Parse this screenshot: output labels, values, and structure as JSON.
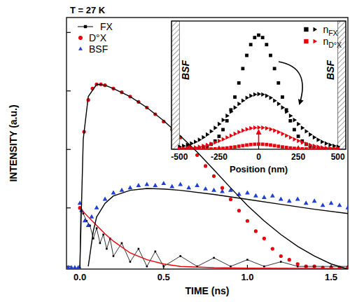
{
  "chart_data": [
    {
      "type": "line",
      "annotations": [
        "T = 27 K"
      ],
      "x_label": "TIME (ns)",
      "y_label": "INTENSITY (a.u.)",
      "xlim": [
        -0.08,
        1.6
      ],
      "ylim": [
        0.9,
        18000
      ],
      "xticks": [
        {
          "value": 0,
          "label": "0.0"
        },
        {
          "value": 0.5,
          "label": "0.5"
        },
        {
          "value": 1,
          "label": "1.0"
        },
        {
          "value": 1.5,
          "label": "1.5"
        }
      ],
      "yticks": [
        1,
        10,
        100,
        1000,
        10000
      ],
      "log": "y",
      "tick_labels": "x",
      "legend": "upper left",
      "series": [
        {
          "name": "FX",
          "type": "line",
          "color": "#000000",
          "marker": "square",
          "line_style": "solid",
          "x": [
            0,
            0.005,
            0.02,
            0.04,
            0.06,
            0.08,
            0.1,
            0.12,
            0.14,
            0.16,
            0.18,
            0.2,
            0.25,
            0.3,
            0.35,
            0.4,
            0.45,
            0.5,
            0.6,
            0.7,
            0.8,
            0.9,
            1.0,
            1.1,
            1.2,
            1.3,
            1.4,
            1.5,
            1.6
          ],
          "values": [
            0.95,
            10,
            8,
            6,
            5,
            3,
            4.5,
            2.5,
            3.5,
            2,
            3,
            1.5,
            2.5,
            1.2,
            2,
            1,
            1.8,
            1,
            1.5,
            1,
            1.4,
            1,
            1.3,
            1,
            1.2,
            1,
            1,
            1,
            1
          ]
        },
        {
          "name": "D°X",
          "type": "scatter",
          "color": "#e8000b",
          "marker": "circle",
          "x": [
            0,
            0.025,
            0.05,
            0.075,
            0.1,
            0.125,
            0.15,
            0.2,
            0.25,
            0.3,
            0.35,
            0.4,
            0.45,
            0.5,
            0.55,
            0.6,
            0.65,
            0.7,
            0.75,
            0.8,
            0.85,
            0.9,
            0.95,
            1.0,
            1.05,
            1.1,
            1.15,
            1.2,
            1.25,
            1.3,
            1.35,
            1.4,
            1.45,
            1.5,
            1.55,
            1.6
          ],
          "values": [
            10,
            200,
            700,
            1100,
            1300,
            1300,
            1250,
            1100,
            950,
            800,
            650,
            520,
            400,
            300,
            220,
            160,
            115,
            80,
            52,
            35,
            22,
            14,
            9,
            6,
            4,
            3,
            2,
            1.5,
            1.3,
            1.1,
            1.0,
            1.0,
            0.95,
            0.95,
            0.95,
            0.95
          ]
        },
        {
          "name": "BSF",
          "type": "scatter",
          "color": "#1f3fd6",
          "marker": "triangle",
          "x": [
            -0.07,
            -0.05,
            -0.03,
            -0.01,
            0,
            0.01,
            0.03,
            0.05,
            0.07,
            0.1,
            0.15,
            0.2,
            0.25,
            0.3,
            0.35,
            0.4,
            0.45,
            0.5,
            0.55,
            0.6,
            0.65,
            0.7,
            0.75,
            0.8,
            0.85,
            0.9,
            0.95,
            1.0,
            1.05,
            1.1,
            1.15,
            1.2,
            1.25,
            1.3,
            1.35,
            1.4,
            1.45,
            1.5,
            1.55,
            1.6
          ],
          "values": [
            0.95,
            0.95,
            0.95,
            0.95,
            12,
            9,
            6,
            5,
            7,
            10,
            14,
            18,
            20,
            22,
            24,
            25,
            24,
            26,
            23,
            25,
            22,
            24,
            21,
            20,
            19,
            20,
            17,
            18,
            16,
            15,
            16,
            14,
            13,
            14,
            12,
            13,
            11,
            12,
            11,
            10
          ]
        },
        {
          "type": "line",
          "color": "#e8000b",
          "line_style": "solid",
          "x": [
            0,
            0.05,
            0.1,
            0.15,
            0.2,
            0.3,
            0.4,
            0.5,
            0.6,
            0.8,
            1.0,
            1.6
          ],
          "values": [
            10,
            7,
            5,
            3.6,
            2.7,
            1.7,
            1.3,
            1.1,
            1.0,
            0.95,
            0.93,
            0.92
          ]
        },
        {
          "type": "line",
          "color": "#000000",
          "line_style": "solid",
          "x": [
            0,
            0.02,
            0.05,
            0.1,
            0.15,
            0.2,
            0.3,
            0.4,
            0.5,
            0.6,
            0.7,
            0.8,
            0.9,
            1.0,
            1.1,
            1.2,
            1.3,
            1.4,
            1.5,
            1.6
          ],
          "values": [
            1,
            150,
            800,
            1300,
            1250,
            1100,
            800,
            520,
            310,
            170,
            90,
            45,
            22,
            11,
            6,
            3.5,
            2.2,
            1.5,
            1.1,
            0.9
          ]
        },
        {
          "type": "line",
          "color": "#000000",
          "line_style": "solid",
          "x": [
            0.05,
            0.08,
            0.1,
            0.15,
            0.2,
            0.3,
            0.4,
            0.5,
            0.6,
            0.8,
            1.0,
            1.2,
            1.4,
            1.6
          ],
          "values": [
            1,
            4,
            7,
            12,
            16,
            20,
            21.5,
            21,
            20,
            17,
            14,
            11.5,
            9.5,
            8
          ]
        }
      ]
    },
    {
      "type": "scatter",
      "annotations": [
        "BSF",
        "BSF"
      ],
      "x_label": "Position (nm)",
      "xlim": [
        -550,
        550
      ],
      "ylim": [
        0,
        1
      ],
      "xticks": [
        -500,
        -250,
        0,
        250,
        500
      ],
      "tick_labels": "x",
      "legend": "upper right",
      "x": [
        -500,
        -475,
        -450,
        -425,
        -400,
        -375,
        -350,
        -325,
        -300,
        -275,
        -250,
        -225,
        -200,
        -175,
        -150,
        -125,
        -100,
        -75,
        -50,
        -25,
        0,
        25,
        50,
        75,
        100,
        125,
        150,
        175,
        200,
        225,
        250,
        275,
        300,
        325,
        350,
        375,
        400,
        425,
        450,
        475,
        500
      ],
      "series": [
        {
          "name": "nFX",
          "color": "#000000",
          "marker": "square",
          "values": [
            0,
            0,
            0.001,
            0.002,
            0.004,
            0.007,
            0.013,
            0.023,
            0.039,
            0.064,
            0.101,
            0.153,
            0.222,
            0.307,
            0.407,
            0.517,
            0.629,
            0.732,
            0.816,
            0.871,
            0.89,
            0.871,
            0.816,
            0.732,
            0.629,
            0.517,
            0.407,
            0.307,
            0.222,
            0.153,
            0.101,
            0.064,
            0.039,
            0.023,
            0.013,
            0.007,
            0.004,
            0.002,
            0.001,
            0,
            0
          ]
        },
        {
          "color": "#000000",
          "marker": "triangle-right",
          "values": [
            0.019,
            0.026,
            0.034,
            0.045,
            0.058,
            0.074,
            0.093,
            0.115,
            0.14,
            0.167,
            0.197,
            0.228,
            0.261,
            0.293,
            0.325,
            0.354,
            0.379,
            0.401,
            0.417,
            0.427,
            0.43,
            0.427,
            0.417,
            0.401,
            0.379,
            0.354,
            0.325,
            0.293,
            0.261,
            0.228,
            0.197,
            0.167,
            0.14,
            0.115,
            0.093,
            0.074,
            0.058,
            0.045,
            0.034,
            0.026,
            0.019
          ]
        },
        {
          "name": "nD°X",
          "color": "#e8000b",
          "marker": "square",
          "values": [
            0,
            0,
            0,
            0,
            0,
            0.001,
            0.001,
            0.001,
            0.002,
            0.003,
            0.005,
            0.007,
            0.01,
            0.014,
            0.018,
            0.023,
            0.028,
            0.033,
            0.037,
            0.039,
            0.04,
            0.039,
            0.037,
            0.033,
            0.028,
            0.023,
            0.018,
            0.014,
            0.01,
            0.007,
            0.005,
            0.003,
            0.002,
            0.001,
            0.001,
            0.001,
            0,
            0,
            0,
            0,
            0
          ]
        },
        {
          "color": "#e8000b",
          "marker": "triangle-right",
          "values": [
            0.004,
            0.005,
            0.007,
            0.01,
            0.014,
            0.019,
            0.026,
            0.033,
            0.042,
            0.053,
            0.065,
            0.078,
            0.092,
            0.106,
            0.12,
            0.134,
            0.146,
            0.156,
            0.164,
            0.168,
            0.17,
            0.168,
            0.164,
            0.156,
            0.146,
            0.134,
            0.12,
            0.106,
            0.092,
            0.078,
            0.065,
            0.053,
            0.042,
            0.033,
            0.026,
            0.019,
            0.014,
            0.01,
            0.007,
            0.005,
            0.004
          ]
        }
      ]
    }
  ]
}
